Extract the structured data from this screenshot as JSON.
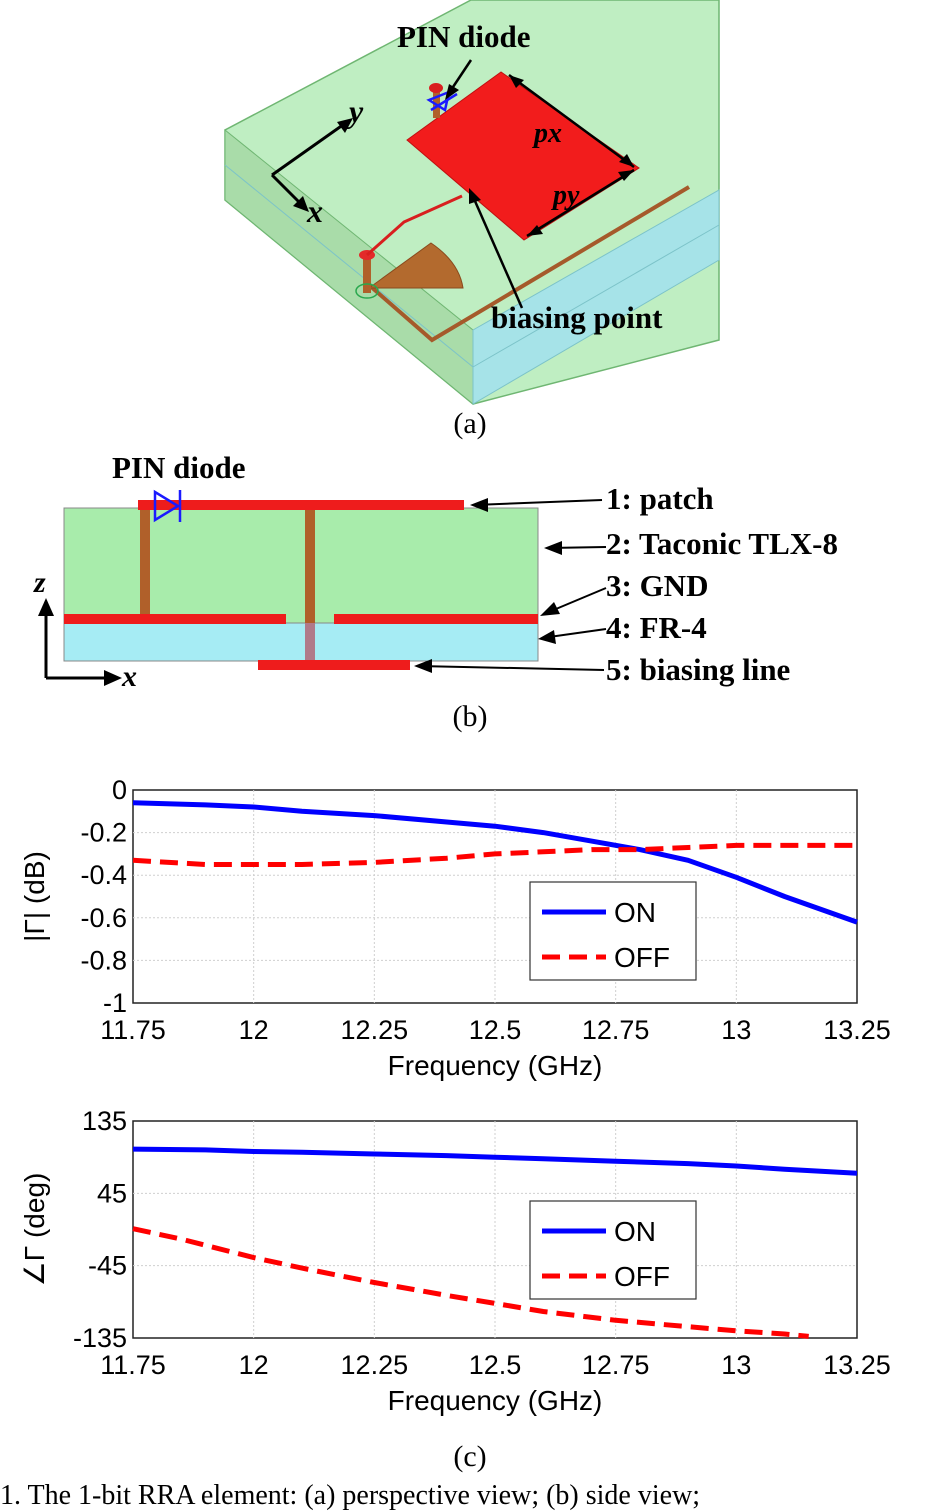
{
  "figure_a": {
    "label": "(a)",
    "annotations": {
      "pin_diode": "PIN diode",
      "axis_y": "y",
      "axis_x": "x",
      "px": "px",
      "py": "py",
      "biasing_point": "biasing point"
    }
  },
  "figure_b": {
    "label": "(b)",
    "pin_diode": "PIN diode",
    "axis_z": "z",
    "axis_x": "x",
    "layers": [
      "1: patch",
      "2: Taconic TLX-8",
      "3: GND",
      "4: FR-4",
      "5: biasing line"
    ],
    "colors": {
      "substrate": "#a8ecab",
      "fr4": "#a6ecf4",
      "metal": "#ee1c1c",
      "via": "#b0602a"
    }
  },
  "figure_c": {
    "label": "(c)"
  },
  "caption": "1.  The 1-bit RRA element: (a) perspective view; (b) side view;",
  "chart_data": [
    {
      "type": "line",
      "xlabel": "Frequency (GHz)",
      "ylabel": "|Γ| (dB)",
      "xlim": [
        11.75,
        13.25
      ],
      "ylim": [
        -1,
        0
      ],
      "xticks": [
        "11.75",
        "12",
        "12.25",
        "12.5",
        "12.75",
        "13",
        "13.25"
      ],
      "yticks": [
        "0",
        "-0.2",
        "-0.4",
        "-0.6",
        "-0.8",
        "-1"
      ],
      "grid": true,
      "legend": "lower-right",
      "series": [
        {
          "name": "ON",
          "color": "#0000ff",
          "style": "solid",
          "x": [
            11.75,
            11.9,
            12.0,
            12.1,
            12.25,
            12.4,
            12.5,
            12.6,
            12.7,
            12.8,
            12.9,
            13.0,
            13.1,
            13.25
          ],
          "y": [
            -0.06,
            -0.07,
            -0.08,
            -0.1,
            -0.12,
            -0.15,
            -0.17,
            -0.2,
            -0.24,
            -0.28,
            -0.33,
            -0.41,
            -0.5,
            -0.62
          ]
        },
        {
          "name": "OFF",
          "color": "#ff0000",
          "style": "dashed",
          "x": [
            11.75,
            11.9,
            12.0,
            12.1,
            12.25,
            12.4,
            12.5,
            12.6,
            12.7,
            12.8,
            12.9,
            13.0,
            13.1,
            13.25
          ],
          "y": [
            -0.33,
            -0.35,
            -0.35,
            -0.35,
            -0.34,
            -0.32,
            -0.3,
            -0.29,
            -0.28,
            -0.28,
            -0.27,
            -0.26,
            -0.26,
            -0.26
          ]
        }
      ]
    },
    {
      "type": "line",
      "xlabel": "Frequency (GHz)",
      "ylabel": "∠Γ (deg)",
      "xlim": [
        11.75,
        13.25
      ],
      "ylim": [
        -135,
        135
      ],
      "xticks": [
        "11.75",
        "12",
        "12.25",
        "12.5",
        "12.75",
        "13",
        "13.25"
      ],
      "yticks": [
        "135",
        "45",
        "-45",
        "-135"
      ],
      "grid": true,
      "legend": "lower-right",
      "series": [
        {
          "name": "ON",
          "color": "#0000ff",
          "style": "solid",
          "x": [
            11.75,
            11.9,
            12.0,
            12.1,
            12.25,
            12.4,
            12.5,
            12.6,
            12.75,
            12.9,
            13.0,
            13.1,
            13.25
          ],
          "y": [
            100,
            99,
            97,
            96,
            94,
            92,
            90,
            88,
            85,
            82,
            79,
            75,
            70
          ]
        },
        {
          "name": "OFF",
          "color": "#ff0000",
          "style": "dashed",
          "x": [
            11.75,
            11.85,
            12.0,
            12.1,
            12.25,
            12.4,
            12.5,
            12.6,
            12.75,
            12.9,
            13.0,
            13.1,
            13.15
          ],
          "y": [
            1,
            -12,
            -35,
            -48,
            -66,
            -82,
            -92,
            -102,
            -113,
            -121,
            -126,
            -130,
            -133
          ]
        }
      ]
    }
  ]
}
